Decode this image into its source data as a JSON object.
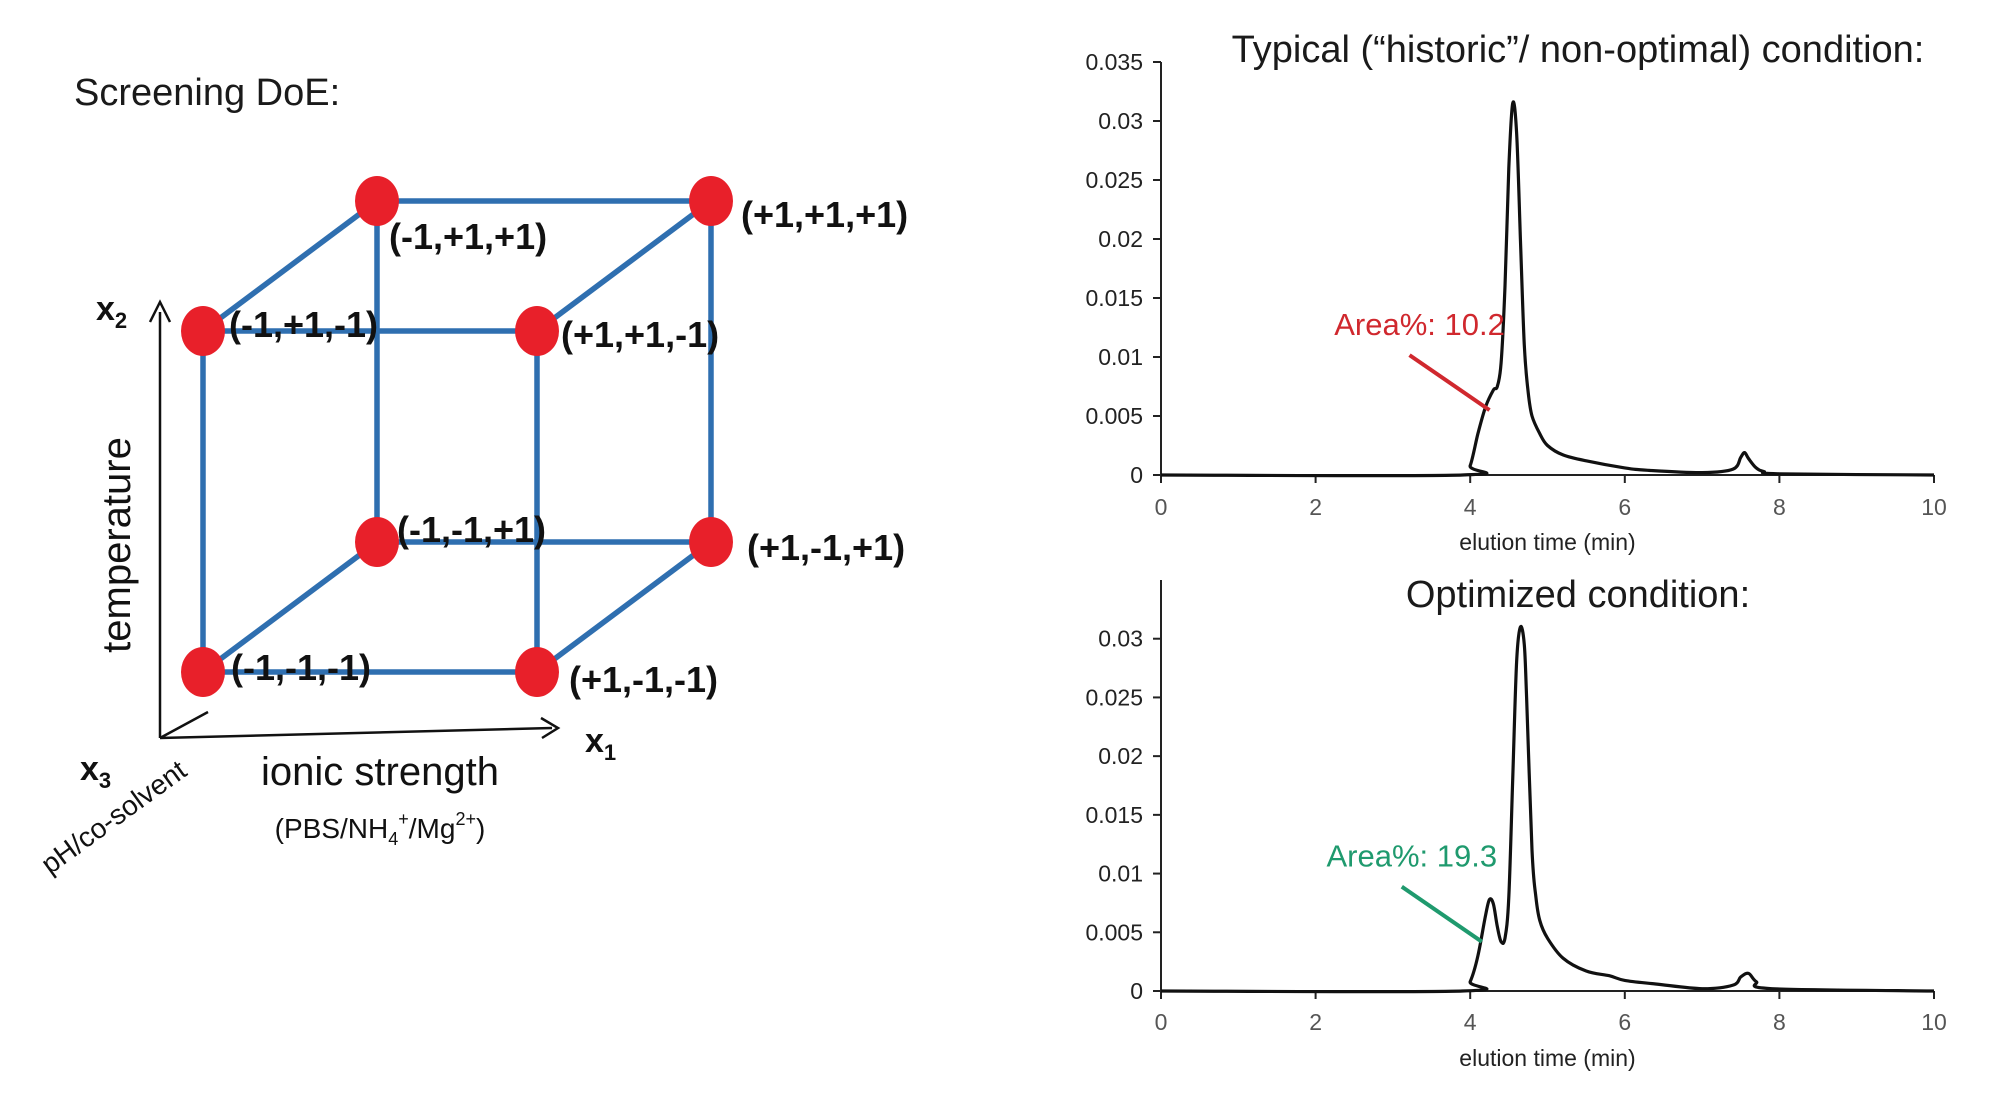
{
  "cube": {
    "title": "Screening DoE:",
    "edge_color": "#2f6fb0",
    "point_color": "#e8202a",
    "corners": [
      {
        "label": "(-1,-1,-1)",
        "coords": [
          -1,
          -1,
          -1
        ]
      },
      {
        "label": "(+1,-1,-1)",
        "coords": [
          1,
          -1,
          -1
        ]
      },
      {
        "label": "(-1,+1,-1)",
        "coords": [
          -1,
          1,
          -1
        ]
      },
      {
        "label": "(+1,+1,-1)",
        "coords": [
          1,
          1,
          -1
        ]
      },
      {
        "label": "(-1,-1,+1)",
        "coords": [
          -1,
          -1,
          1
        ]
      },
      {
        "label": "(+1,-1,+1)",
        "coords": [
          1,
          -1,
          1
        ]
      },
      {
        "label": "(-1,+1,+1)",
        "coords": [
          -1,
          1,
          1
        ]
      },
      {
        "label": "(+1,+1,+1)",
        "coords": [
          1,
          1,
          1
        ]
      }
    ],
    "axes": {
      "x1_symbol": "x",
      "x1_sub": "1",
      "x1_name": "ionic strength",
      "x1_note_pre": "(PBS/NH",
      "x1_note_sub": "4",
      "x1_note_sup1": "+",
      "x1_note_mid": "/Mg",
      "x1_note_sup2": "2+",
      "x1_note_post": ")",
      "x2_symbol": "x",
      "x2_sub": "2",
      "x2_name": "temperature",
      "x3_symbol": "x",
      "x3_sub": "3",
      "x3_name": "pH/co-solvent"
    }
  },
  "chart_data": [
    {
      "type": "line",
      "title": "Typical (“historic”/ non-optimal) condition:",
      "xlabel": "elution time (min)",
      "ylabel": "",
      "xlim": [
        0,
        10
      ],
      "ylim": [
        0,
        0.035
      ],
      "xticks": [
        "0",
        "2",
        "4",
        "6",
        "8",
        "10"
      ],
      "yticks": [
        "0",
        "0.005",
        "0.01",
        "0.015",
        "0.02",
        "0.025",
        "0.03",
        "0.035"
      ],
      "line_color": "#111111",
      "annotation": {
        "text": "Area%: 10.2",
        "color": "#d0282e",
        "x": 4.25,
        "y": 0.0055
      },
      "series": [
        {
          "x": [
            0,
            3.9,
            4.0,
            4.1,
            4.2,
            4.3,
            4.35,
            4.4,
            4.45,
            4.5,
            4.55,
            4.6,
            4.65,
            4.7,
            4.75,
            4.8,
            4.9,
            5.0,
            5.2,
            5.5,
            6.0,
            6.3,
            7.0,
            7.4,
            7.5,
            7.55,
            7.6,
            7.7,
            7.8,
            8.0,
            10
          ],
          "y": [
            0,
            0,
            0.0008,
            0.0035,
            0.0058,
            0.0072,
            0.0075,
            0.0095,
            0.016,
            0.026,
            0.0315,
            0.029,
            0.02,
            0.011,
            0.007,
            0.005,
            0.0035,
            0.0025,
            0.0017,
            0.0012,
            0.0006,
            0.0004,
            0.0002,
            0.0005,
            0.0015,
            0.0019,
            0.0014,
            0.0006,
            0.0003,
            0.0001,
            0
          ]
        }
      ]
    },
    {
      "type": "line",
      "title": "Optimized condition:",
      "xlabel": "elution time (min)",
      "ylabel": "",
      "xlim": [
        0,
        10
      ],
      "ylim": [
        0,
        0.035
      ],
      "xticks": [
        "0",
        "2",
        "4",
        "6",
        "8",
        "10"
      ],
      "yticks": [
        "0",
        "0.005",
        "0.01",
        "0.015",
        "0.02",
        "0.025",
        "0.03"
      ],
      "line_color": "#111111",
      "annotation": {
        "text": "Area%: 19.3",
        "color": "#1f9a6e",
        "x": 4.15,
        "y": 0.0042
      },
      "series": [
        {
          "x": [
            0,
            3.9,
            4.0,
            4.1,
            4.2,
            4.25,
            4.3,
            4.35,
            4.4,
            4.45,
            4.5,
            4.55,
            4.6,
            4.65,
            4.7,
            4.73,
            4.8,
            4.85,
            4.9,
            5.0,
            5.2,
            5.5,
            5.8,
            6.0,
            6.4,
            7.0,
            7.4,
            7.5,
            7.6,
            7.7,
            7.9,
            10
          ],
          "y": [
            0,
            0,
            0.0008,
            0.003,
            0.0065,
            0.0078,
            0.0074,
            0.0055,
            0.0042,
            0.0045,
            0.008,
            0.018,
            0.028,
            0.031,
            0.0295,
            0.025,
            0.012,
            0.008,
            0.006,
            0.0045,
            0.0028,
            0.0017,
            0.0013,
            0.0009,
            0.0006,
            0.0002,
            0.0005,
            0.0012,
            0.0015,
            0.0008,
            0.0002,
            0
          ]
        }
      ]
    }
  ]
}
